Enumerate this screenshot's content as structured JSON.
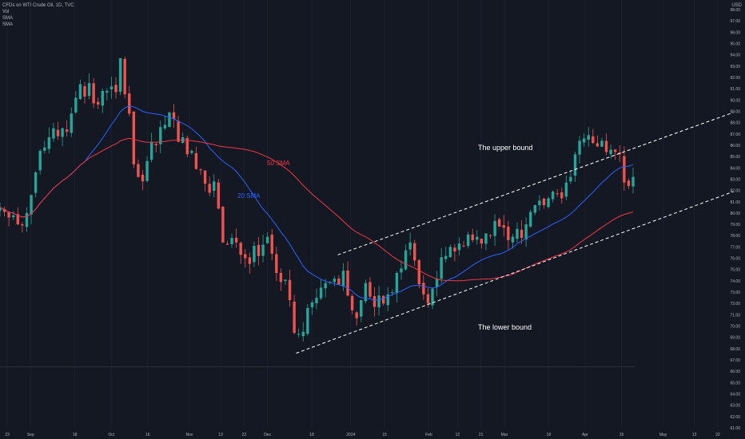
{
  "legend": {
    "symbol": "CFDs on WTI Crude Oil, 1D, TVC",
    "vol": "Vol",
    "sma1": "SMA",
    "sma2": "SMA"
  },
  "currency": "USD",
  "annotations": {
    "upper": "The upper bound",
    "lower": "The lower bound",
    "sma50": "50 SMA",
    "sma20": "20 SMA"
  },
  "colors": {
    "background": "#141823",
    "up": "#26a69a",
    "down": "#ef5350",
    "sma20": "#2962ff",
    "sma50": "#f23645",
    "bound": "#ffffff",
    "axis_text": "#b2b5be"
  },
  "chart_data": {
    "type": "candlestick",
    "ylim": [
      61,
      98
    ],
    "y_ticks": [
      61,
      62,
      63,
      64,
      65,
      66,
      67,
      68,
      69,
      70,
      71,
      72,
      73,
      74,
      75,
      76,
      77,
      78,
      79,
      80,
      81,
      82,
      83,
      84,
      85,
      86,
      87,
      88,
      89,
      90,
      91,
      92,
      93,
      94,
      95,
      96,
      97,
      98
    ],
    "x_ticks": [
      {
        "label": "23",
        "date": "2023-08-23"
      },
      {
        "label": "Sep",
        "date": "2023-09-01"
      },
      {
        "label": "18",
        "date": "2023-09-18"
      },
      {
        "label": "Oct",
        "date": "2023-10-02"
      },
      {
        "label": "16",
        "date": "2023-10-16"
      },
      {
        "label": "Nov",
        "date": "2023-11-01"
      },
      {
        "label": "13",
        "date": "2023-11-13"
      },
      {
        "label": "22",
        "date": "2023-11-22"
      },
      {
        "label": "Dec",
        "date": "2023-12-01"
      },
      {
        "label": "18",
        "date": "2023-12-18"
      },
      {
        "label": "2024",
        "date": "2024-01-02"
      },
      {
        "label": "15",
        "date": "2024-01-15"
      },
      {
        "label": "Feb",
        "date": "2024-02-01"
      },
      {
        "label": "12",
        "date": "2024-02-12"
      },
      {
        "label": "21",
        "date": "2024-02-21"
      },
      {
        "label": "Mar",
        "date": "2024-03-01"
      },
      {
        "label": "18",
        "date": "2024-03-18"
      },
      {
        "label": "Apr",
        "date": "2024-04-01"
      },
      {
        "label": "15",
        "date": "2024-04-15"
      },
      {
        "label": "May",
        "date": "2024-05-01"
      },
      {
        "label": "13",
        "date": "2024-05-13"
      },
      {
        "label": "22",
        "date": "2024-05-22"
      }
    ],
    "close": [
      80.5,
      80.1,
      79.6,
      79.8,
      79.0,
      78.9,
      80.0,
      81.6,
      83.6,
      85.5,
      85.8,
      86.7,
      87.5,
      86.8,
      87.5,
      87.2,
      88.8,
      90.2,
      91.4,
      90.3,
      91.5,
      89.7,
      89.6,
      90.8,
      90.8,
      91.2,
      90.7,
      93.7,
      90.5,
      88.8,
      84.3,
      83.2,
      82.8,
      84.6,
      86.3,
      86.0,
      87.6,
      87.8,
      88.9,
      88.3,
      86.3,
      86.7,
      85.2,
      85.5,
      83.9,
      83.8,
      82.6,
      81.8,
      82.8,
      80.4,
      77.4,
      77.2,
      77.8,
      77.4,
      76.3,
      76.0,
      75.5,
      77.1,
      76.2,
      77.2,
      77.9,
      76.4,
      74.7,
      73.9,
      74.1,
      72.3,
      69.4,
      69.3,
      69.5,
      71.6,
      72.1,
      72.5,
      73.4,
      73.8,
      73.9,
      74.2,
      73.7,
      74.9,
      72.7,
      71.4,
      70.7,
      72.3,
      73.8,
      72.6,
      71.7,
      72.7,
      72.0,
      72.8,
      73.0,
      74.7,
      75.1,
      76.7,
      77.4,
      75.8,
      73.7,
      72.8,
      72.0,
      73.3,
      74.2,
      76.1,
      76.2,
      77.0,
      76.6,
      77.3,
      77.1,
      78.1,
      77.6,
      77.9,
      77.3,
      78.2,
      78.0,
      79.3,
      78.8,
      78.7,
      77.6,
      77.9,
      78.6,
      77.8,
      79.0,
      80.1,
      80.7,
      81.1,
      80.7,
      81.3,
      81.9,
      81.7,
      81.3,
      82.7,
      83.2,
      85.2,
      86.4,
      86.6,
      86.9,
      86.2,
      85.9,
      86.4,
      85.4,
      85.6,
      85.4,
      85.2,
      82.7,
      82.4,
      83.2
    ],
    "sma20_end": 84.2,
    "sma50_end": 81.0,
    "channel_upper": [
      {
        "date": "2023-12-28",
        "y": 76.3
      },
      {
        "date": "2024-05-28",
        "y": 88.9
      }
    ],
    "channel_lower": [
      {
        "date": "2023-12-12",
        "y": 67.6
      },
      {
        "date": "2024-05-28",
        "y": 81.9
      }
    ],
    "volume_separator_y": 66.4
  }
}
